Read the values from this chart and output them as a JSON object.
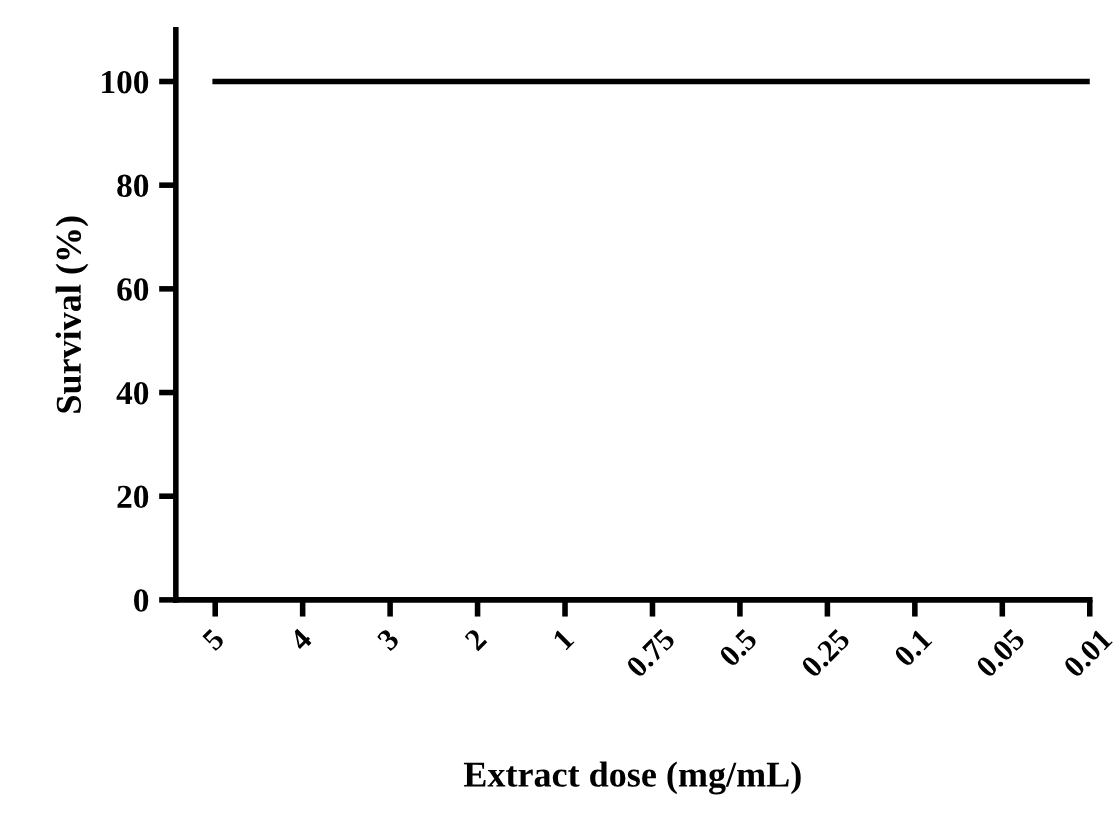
{
  "chart_data": {
    "type": "line",
    "xlabel": "Extract dose (mg/mL)",
    "ylabel": "Survival (%)",
    "categories": [
      "5",
      "4",
      "3",
      "2",
      "1",
      "0.75",
      "0.5",
      "0.25",
      "0.1",
      "0.05",
      "0.01"
    ],
    "series": [
      {
        "color": "#000000",
        "values": [
          100,
          100,
          100,
          100,
          100,
          100,
          100,
          100,
          100,
          100,
          100
        ]
      }
    ],
    "ylim": [
      0,
      110
    ],
    "yticks": [
      0,
      20,
      40,
      60,
      80,
      100
    ],
    "marker": "none",
    "line_style": "solid"
  }
}
